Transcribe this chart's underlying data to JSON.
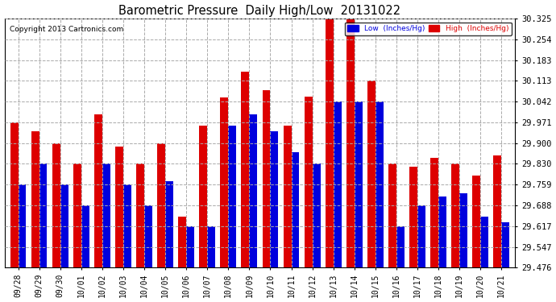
{
  "title": "Barometric Pressure  Daily High/Low  20131022",
  "copyright": "Copyright 2013 Cartronics.com",
  "legend_low": "Low  (Inches/Hg)",
  "legend_high": "High  (Inches/Hg)",
  "low_color": "#0000dd",
  "high_color": "#dd0000",
  "background_color": "#ffffff",
  "plot_bg_color": "#ffffff",
  "grid_color": "#aaaaaa",
  "ylim": [
    29.476,
    30.325
  ],
  "yticks": [
    29.476,
    29.547,
    29.617,
    29.688,
    29.759,
    29.83,
    29.9,
    29.971,
    30.042,
    30.113,
    30.183,
    30.254,
    30.325
  ],
  "dates": [
    "09/28",
    "09/29",
    "09/30",
    "10/01",
    "10/02",
    "10/03",
    "10/04",
    "10/05",
    "10/06",
    "10/07",
    "10/08",
    "10/09",
    "10/10",
    "10/11",
    "10/12",
    "10/13",
    "10/14",
    "10/15",
    "10/16",
    "10/17",
    "10/18",
    "10/19",
    "10/20",
    "10/21"
  ],
  "high_values": [
    29.971,
    29.942,
    29.9,
    29.83,
    30.0,
    29.89,
    29.83,
    29.9,
    29.65,
    29.96,
    30.055,
    30.145,
    30.08,
    29.96,
    30.06,
    30.33,
    30.325,
    30.113,
    29.83,
    29.82,
    29.85,
    29.83,
    29.79,
    29.86
  ],
  "low_values": [
    29.759,
    29.83,
    29.759,
    29.688,
    29.83,
    29.759,
    29.688,
    29.771,
    29.617,
    29.617,
    29.96,
    30.0,
    29.94,
    29.87,
    29.83,
    30.042,
    30.042,
    30.042,
    29.617,
    29.688,
    29.72,
    29.73,
    29.65,
    29.63
  ]
}
